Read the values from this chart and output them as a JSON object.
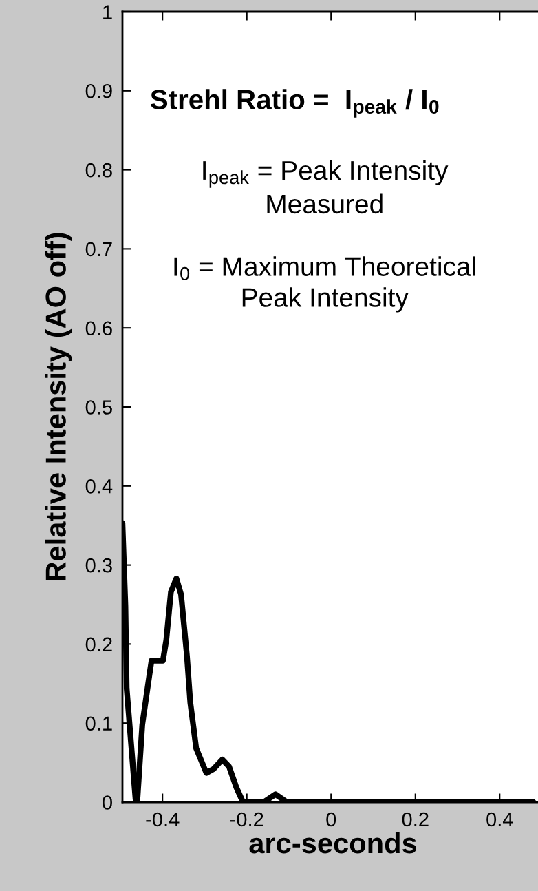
{
  "chart_data": {
    "type": "line",
    "xlabel": "arc-seconds",
    "ylabel": "Relative Intensity (AO off)",
    "annotations": [
      "Strehl Ratio =  I$_{peak}$ / I$_{0}$",
      "I$_{peak}$ = Peak Intensity\nMeasured",
      "I$_{0}$ = Maximum Theoretical\nPeak Intensity"
    ],
    "x": [
      -0.495,
      -0.488,
      -0.485,
      -0.464,
      -0.46,
      -0.448,
      -0.431,
      -0.426,
      -0.399,
      -0.391,
      -0.38,
      -0.367,
      -0.356,
      -0.342,
      -0.334,
      -0.32,
      -0.296,
      -0.279,
      -0.258,
      -0.242,
      -0.225,
      -0.209,
      -0.16,
      -0.132,
      -0.105,
      0.48
    ],
    "series": [
      {
        "color": "#000000",
        "values": [
          0.353,
          0.248,
          0.144,
          0.004,
          0,
          0.098,
          0.161,
          0.179,
          0.179,
          0.205,
          0.266,
          0.283,
          0.263,
          0.185,
          0.126,
          0.068,
          0.037,
          0.042,
          0.054,
          0.045,
          0.019,
          0,
          0,
          0.01,
          0,
          0
        ]
      }
    ],
    "xlim": [
      -0.495,
      0.504
    ],
    "ylim": [
      0,
      1
    ],
    "xticks": [
      -0.4,
      -0.2,
      0,
      0.2,
      0.4
    ],
    "yticks": [
      0,
      0.1,
      0.2,
      0.3,
      0.4,
      0.5,
      0.6,
      0.7,
      0.8,
      0.9,
      1
    ],
    "grid": false,
    "legend": false,
    "marker": "none",
    "line_style": "solid"
  }
}
